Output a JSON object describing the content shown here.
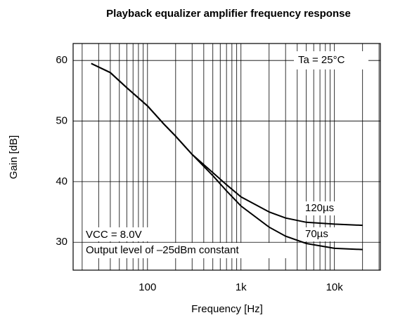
{
  "chart_data": {
    "type": "line",
    "title": "Playback equalizer amplifier frequency response",
    "xlabel": "Frequency [Hz]",
    "ylabel": "Gain [dB]",
    "xscale": "log",
    "xlim": [
      16,
      31000
    ],
    "ylim": [
      25.4,
      62.8
    ],
    "xticks": [
      100,
      {
        "value": 1000,
        "label": "1k"
      },
      {
        "value": 10000,
        "label": "10k"
      }
    ],
    "xminorticks": [
      20,
      30,
      40,
      50,
      60,
      70,
      80,
      90,
      200,
      300,
      400,
      500,
      600,
      700,
      800,
      900,
      2000,
      3000,
      4000,
      5000,
      6000,
      7000,
      8000,
      9000,
      20000,
      30000
    ],
    "yticks": [
      30,
      40,
      50,
      60
    ],
    "grid": true,
    "annotations": [
      "Ta = 25°C",
      "VCC = 8.0V",
      "Output level of –25dBm constant"
    ],
    "series": [
      {
        "name": "120µs",
        "color": "#000000",
        "x": [
          25,
          40,
          60,
          100,
          150,
          200,
          300,
          500,
          700,
          1000,
          2000,
          3000,
          5000,
          10000,
          20000
        ],
        "values": [
          59.5,
          58,
          55.5,
          52.5,
          49.5,
          47.5,
          44.5,
          41.5,
          39.5,
          37.5,
          35,
          34,
          33.3,
          33,
          32.8
        ]
      },
      {
        "name": "70µs",
        "color": "#000000",
        "x": [
          25,
          40,
          60,
          100,
          150,
          200,
          300,
          500,
          700,
          1000,
          2000,
          3000,
          5000,
          10000,
          20000
        ],
        "values": [
          59.5,
          58,
          55.5,
          52.5,
          49.5,
          47.5,
          44.5,
          41,
          38.5,
          36,
          32.5,
          31,
          29.8,
          29,
          28.8
        ]
      }
    ]
  }
}
